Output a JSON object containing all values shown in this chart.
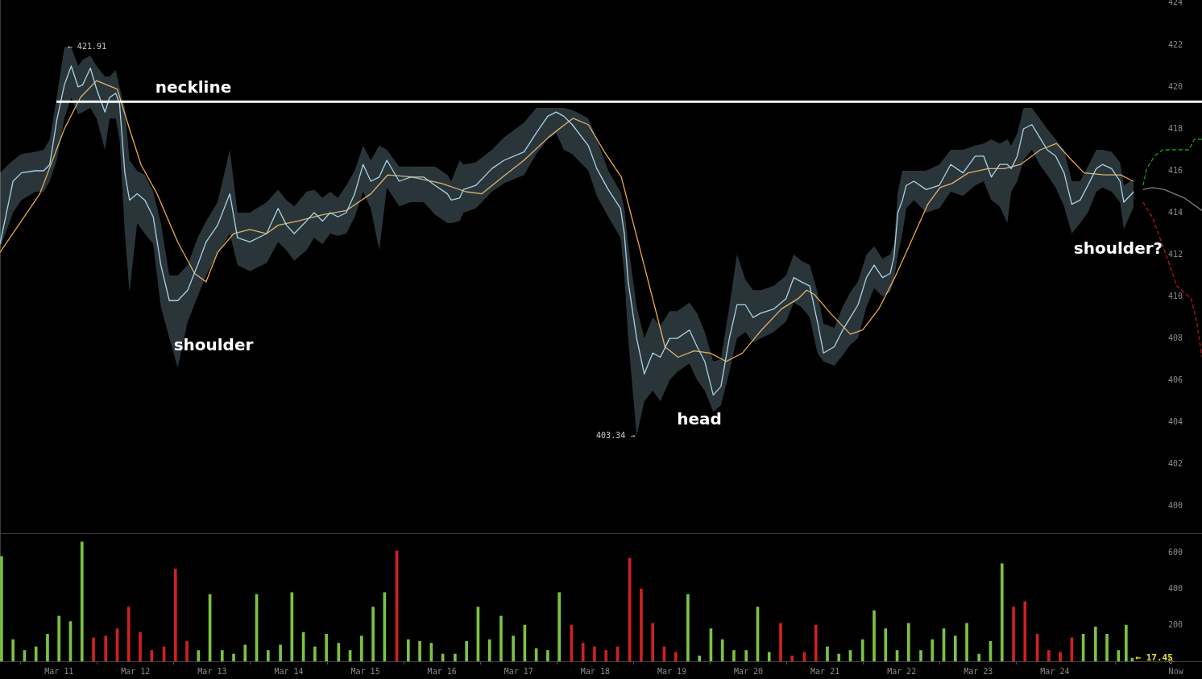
{
  "chart_data": [
    {
      "type": "line",
      "tick_labels": "y",
      "xlim": [
        "--03-10T05:31",
        "--03-25T22:05"
      ],
      "ylim": [
        398.7,
        424.15
      ],
      "yticks": [
        400,
        402,
        404,
        406,
        408,
        410,
        412,
        414,
        416,
        418,
        420,
        422,
        424
      ],
      "series": [
        {
          "color": "#a9d4e6",
          "x": [
            "--03-10T05:31",
            "--03-10T09:36",
            "--03-10T12:14",
            "--03-10T16:34",
            "--03-10T19:12",
            "--03-10T21:07",
            "--03-10T23:17",
            "--03-11T01:41",
            "--03-11T03:50",
            "--03-11T06:00",
            "--03-11T07:26",
            "--03-11T09:50",
            "--03-11T11:46",
            "--03-11T14:24",
            "--03-11T15:50",
            "--03-11T17:46",
            "--03-11T18:58",
            "--03-11T20:38",
            "--03-11T22:05",
            "--03-12T00:29",
            "--03-12T02:53",
            "--03-12T05:31",
            "--03-12T07:55",
            "--03-12T10:34",
            "--03-12T13:12",
            "--03-12T16:19",
            "--03-12T19:26",
            "--03-12T22:05",
            "--03-13T01:41",
            "--03-13T05:31",
            "--03-13T07:55",
            "--03-13T11:46",
            "--03-13T17:02",
            "--03-13T20:38",
            "--03-13T23:17",
            "--03-14T01:41",
            "--03-14T05:31",
            "--03-14T07:55",
            "--03-14T10:34",
            "--03-14T12:58",
            "--03-14T15:22",
            "--03-14T18:00",
            "--03-14T20:38",
            "--03-14T23:17",
            "--03-15T01:41",
            "--03-15T04:19",
            "--03-15T06:43",
            "--03-15T10:34",
            "--03-15T14:10",
            "--03-15T18:14",
            "--03-15T21:50",
            "--03-16T01:41",
            "--03-16T02:53",
            "--03-16T05:31",
            "--03-16T06:43",
            "--03-16T10:34",
            "--03-16T15:36",
            "--03-16T19:26",
            "--03-17T01:41",
            "--03-17T05:31",
            "--03-17T09:07",
            "--03-17T11:46",
            "--03-17T14:10",
            "--03-17T16:48",
            "--03-17T21:50",
            "--03-18T00:29",
            "--03-18T04:05",
            "--03-18T07:55",
            "--03-18T09:07",
            "--03-18T10:19",
            "--03-18T12:58",
            "--03-18T15:22",
            "--03-18T18:00",
            "--03-18T20:24",
            "--03-18T23:17",
            "--03-19T01:41",
            "--03-19T05:31",
            "--03-19T07:55",
            "--03-19T10:19",
            "--03-19T12:58",
            "--03-19T15:22",
            "--03-19T18:00",
            "--03-19T20:24",
            "--03-19T23:02",
            "--03-20T01:26",
            "--03-20T03:50",
            "--03-20T07:55",
            "--03-20T11:46",
            "--03-20T14:10",
            "--03-20T16:34",
            "--03-20T19:12",
            "--03-20T21:36",
            "--03-20T23:31",
            "--03-21T02:53",
            "--03-21T05:31",
            "--03-21T07:55",
            "--03-21T10:19",
            "--03-21T12:58",
            "--03-21T15:22",
            "--03-21T18:00",
            "--03-21T20:24",
            "--03-21T21:36",
            "--03-21T22:48",
            "--03-22T00:14",
            "--03-22T01:26",
            "--03-22T03:50",
            "--03-22T07:41",
            "--03-22T11:46",
            "--03-22T15:22",
            "--03-22T19:12",
            "--03-22T23:02",
            "--03-23T01:41",
            "--03-23T04:05",
            "--03-23T06:43",
            "--03-23T09:07",
            "--03-23T10:19",
            "--03-23T12:14",
            "--03-23T14:10",
            "--03-23T16:48",
            "--03-23T19:12",
            "--03-23T21:36",
            "--03-24T00:14",
            "--03-24T02:53",
            "--03-24T05:17",
            "--03-24T07:55",
            "--03-24T10:19",
            "--03-24T12:58",
            "--03-24T14:53",
            "--03-24T17:46",
            "--03-24T20:24",
            "--03-24T21:36",
            "--03-25T00:43"
          ],
          "values": [
            412.5,
            415.5,
            415.9,
            416.0,
            416.0,
            416.3,
            418.4,
            420.1,
            421.0,
            420.0,
            420.1,
            420.9,
            419.9,
            418.8,
            419.5,
            419.7,
            419.2,
            415.9,
            414.6,
            414.9,
            414.6,
            413.8,
            411.5,
            409.8,
            409.8,
            410.3,
            411.5,
            412.6,
            413.4,
            414.9,
            412.8,
            412.6,
            413.0,
            414.2,
            413.4,
            413.0,
            413.6,
            414.0,
            413.6,
            414.0,
            413.8,
            414.0,
            414.9,
            416.3,
            415.5,
            415.7,
            416.5,
            415.5,
            415.7,
            415.7,
            415.3,
            414.9,
            414.6,
            414.7,
            415.1,
            415.3,
            416.1,
            416.5,
            416.9,
            417.8,
            418.6,
            418.8,
            418.6,
            418.2,
            417.2,
            416.1,
            415.1,
            414.2,
            413.0,
            410.7,
            408.0,
            406.3,
            407.3,
            407.1,
            408.0,
            408.0,
            408.4,
            407.6,
            406.9,
            405.3,
            405.7,
            408.0,
            409.6,
            409.6,
            409.0,
            409.2,
            409.4,
            409.9,
            410.9,
            410.7,
            410.5,
            408.8,
            407.3,
            407.6,
            408.4,
            409.0,
            409.6,
            410.9,
            411.5,
            410.9,
            411.1,
            411.9,
            414.0,
            414.6,
            415.3,
            415.5,
            415.1,
            415.3,
            416.3,
            415.9,
            416.7,
            416.7,
            415.7,
            416.3,
            416.3,
            416.1,
            416.7,
            418.0,
            418.2,
            417.6,
            417.0,
            416.7,
            415.9,
            414.4,
            414.6,
            415.3,
            416.1,
            416.3,
            416.1,
            415.5,
            414.5,
            415.0
          ],
          "upper": [
            415.9,
            416.5,
            416.8,
            416.9,
            417.0,
            417.5,
            419.5,
            421.9,
            421.9,
            421.0,
            421.3,
            421.5,
            421.0,
            420.5,
            420.5,
            420.8,
            420.0,
            419.0,
            416.5,
            416.0,
            415.8,
            415.0,
            413.5,
            411.0,
            411.0,
            411.5,
            412.8,
            413.6,
            414.5,
            417.0,
            414.0,
            414.0,
            414.5,
            415.1,
            414.6,
            414.3,
            415.0,
            415.1,
            414.7,
            415.0,
            414.7,
            415.3,
            416.0,
            417.2,
            416.5,
            417.2,
            417.0,
            416.2,
            416.2,
            416.2,
            416.2,
            415.8,
            415.5,
            416.5,
            416.3,
            416.4,
            417.0,
            417.6,
            418.3,
            419.0,
            419.0,
            419.0,
            419.0,
            418.9,
            418.5,
            417.5,
            416.0,
            415.0,
            414.2,
            412.5,
            409.5,
            408.0,
            409.0,
            408.6,
            409.3,
            409.3,
            409.7,
            409.2,
            408.3,
            406.9,
            407.0,
            409.5,
            412.0,
            410.8,
            410.3,
            410.3,
            410.5,
            411.0,
            412.0,
            411.7,
            411.5,
            410.2,
            408.7,
            408.5,
            409.5,
            410.2,
            410.7,
            412.0,
            412.4,
            411.8,
            412.0,
            412.5,
            415.0,
            416.0,
            416.0,
            416.0,
            416.0,
            416.3,
            417.0,
            417.0,
            417.2,
            417.3,
            417.5,
            417.3,
            417.5,
            417.2,
            417.8,
            419.0,
            419.0,
            418.5,
            418.0,
            417.5,
            417.0,
            415.5,
            415.5,
            416.2,
            417.0,
            417.0,
            416.9,
            416.4,
            415.3,
            415.6
          ],
          "lower": [
            412.3,
            414.0,
            414.6,
            415.0,
            415.0,
            415.5,
            416.5,
            418.5,
            419.5,
            418.7,
            418.8,
            419.0,
            418.5,
            417.0,
            418.5,
            418.5,
            417.5,
            413.0,
            410.2,
            413.5,
            413.0,
            412.5,
            409.5,
            408.0,
            406.6,
            408.8,
            410.0,
            411.0,
            412.0,
            413.0,
            411.5,
            411.2,
            411.6,
            412.6,
            412.2,
            411.7,
            412.2,
            412.8,
            412.5,
            413.0,
            412.9,
            413.0,
            413.8,
            415.0,
            414.2,
            412.2,
            415.2,
            414.3,
            414.5,
            414.5,
            413.9,
            413.5,
            413.5,
            413.6,
            414.0,
            414.2,
            415.0,
            415.4,
            415.8,
            416.8,
            417.5,
            417.8,
            417.0,
            416.8,
            416.0,
            414.8,
            413.8,
            412.8,
            411.0,
            408.0,
            403.34,
            405.0,
            405.5,
            405.0,
            406.0,
            406.4,
            406.8,
            406.0,
            405.5,
            404.5,
            404.8,
            406.4,
            408.0,
            408.3,
            407.8,
            408.0,
            408.3,
            408.8,
            409.7,
            409.5,
            409.0,
            407.3,
            406.9,
            406.7,
            407.2,
            407.7,
            408.0,
            409.5,
            410.4,
            410.0,
            410.2,
            410.8,
            412.0,
            413.0,
            414.2,
            414.6,
            414.0,
            414.2,
            415.0,
            414.8,
            415.3,
            415.5,
            414.6,
            414.3,
            413.5,
            415.0,
            415.5,
            416.5,
            417.0,
            416.3,
            415.8,
            415.2,
            414.3,
            413.0,
            413.5,
            414.0,
            415.0,
            415.2,
            415.0,
            414.5,
            413.2,
            414.3
          ]
        },
        {
          "color": "#f0a848",
          "x": [
            "--03-10T05:31",
            "--03-10T18:00",
            "--03-11T01:41",
            "--03-11T06:43",
            "--03-11T11:46",
            "--03-11T18:14",
            "--03-11T22:05",
            "--03-12T01:41",
            "--03-12T06:43",
            "--03-12T13:12",
            "--03-12T18:29",
            "--03-12T22:05",
            "--03-13T01:41",
            "--03-13T06:43",
            "--03-13T11:46",
            "--03-13T17:02",
            "--03-13T20:38",
            "--03-14T02:53",
            "--03-14T10:34",
            "--03-14T18:00",
            "--03-15T01:41",
            "--03-15T06:58",
            "--03-15T14:38",
            "--03-15T23:46",
            "--03-16T07:26",
            "--03-16T12:29",
            "--03-16T18:58",
            "--03-17T01:41",
            "--03-17T09:22",
            "--03-17T14:24",
            "--03-17T17:02",
            "--03-17T21:50",
            "--03-18T02:53",
            "--03-18T08:10",
            "--03-18T13:26",
            "--03-18T18:29",
            "--03-18T21:50",
            "--03-19T01:55",
            "--03-19T06:58",
            "--03-19T12:00",
            "--03-19T17:02",
            "--03-19T22:05",
            "--03-20T04:05",
            "--03-20T10:19",
            "--03-20T15:36",
            "--03-20T18:14",
            "--03-20T20:38",
            "--03-21T01:41",
            "--03-21T07:55",
            "--03-21T11:46",
            "--03-21T16:48",
            "--03-21T21:50",
            "--03-22T02:53",
            "--03-22T08:10",
            "--03-22T12:00",
            "--03-22T15:50",
            "--03-22T20:53",
            "--03-23T03:07",
            "--03-23T08:10",
            "--03-23T13:12",
            "--03-23T19:26",
            "--03-24T00:29",
            "--03-24T05:17",
            "--03-24T09:07",
            "--03-24T15:36",
            "--03-24T20:38",
            "--03-25T00:29"
          ],
          "values": [
            412.1,
            414.9,
            418.0,
            419.5,
            420.3,
            419.9,
            418.0,
            416.3,
            414.9,
            412.6,
            411.1,
            410.7,
            412.1,
            413.0,
            413.2,
            413.0,
            413.4,
            413.6,
            413.9,
            414.1,
            414.9,
            415.8,
            415.7,
            415.4,
            415.0,
            414.9,
            415.7,
            416.5,
            417.6,
            418.2,
            418.5,
            418.2,
            416.9,
            415.7,
            412.6,
            409.6,
            407.6,
            407.1,
            407.4,
            407.3,
            406.9,
            407.3,
            408.4,
            409.4,
            409.9,
            410.3,
            410.1,
            409.2,
            408.2,
            408.4,
            409.4,
            410.9,
            412.6,
            414.4,
            415.2,
            415.4,
            415.9,
            416.1,
            416.1,
            416.3,
            417.0,
            417.3,
            416.5,
            415.9,
            415.8,
            415.8,
            415.5
          ]
        },
        {
          "color": "#1f9a1f",
          "line_style": "dashed",
          "x": [
            "--03-25T03:36",
            "--03-25T04:48",
            "--03-25T07:12",
            "--03-25T09:50",
            "--03-25T18:00",
            "--03-25T19:41",
            "--03-25T22:05"
          ],
          "values": [
            415.3,
            416.1,
            416.7,
            417.0,
            417.0,
            417.5,
            417.5
          ]
        },
        {
          "color": "#808080",
          "x": [
            "--03-25T03:36",
            "--03-25T06:29",
            "--03-25T10:19",
            "--03-25T16:34",
            "--03-25T22:05"
          ],
          "values": [
            415.1,
            415.2,
            415.1,
            414.7,
            414.1
          ]
        },
        {
          "color": "#b01818",
          "line_style": "dashed",
          "x": [
            "--03-25T03:36",
            "--03-25T06:29",
            "--03-25T08:24",
            "--03-25T11:02",
            "--03-25T14:10",
            "--03-25T18:43",
            "--03-25T20:24",
            "--03-25T22:05"
          ],
          "values": [
            414.5,
            413.8,
            413.0,
            411.9,
            410.5,
            409.9,
            408.8,
            407.1
          ]
        }
      ],
      "ref_lines": [
        {
          "axis": "y",
          "value": 419.3,
          "label": "neckline",
          "color": "#ffffff"
        }
      ],
      "annotations": [
        "shoulder",
        "head",
        "shoulder?",
        {
          "text": "← 421.91",
          "x": "--03-11T02:10",
          "y": 421.91
        },
        {
          "text": "403.34 →",
          "x": "--03-18T12:58",
          "y": 403.34
        }
      ]
    },
    {
      "type": "bar",
      "xlim": [
        "--03-10T05:31",
        "--03-25T22:05"
      ],
      "ylim": [
        0,
        704
      ],
      "yticks": [
        0,
        200,
        400,
        600
      ],
      "xticks": [
        {
          "value": "--03-11",
          "label": "Mar 11"
        },
        {
          "value": "--03-12",
          "label": "Mar 12"
        },
        {
          "value": "--03-13",
          "label": "Mar 13"
        },
        {
          "value": "--03-14",
          "label": "Mar 14"
        },
        {
          "value": "--03-15",
          "label": "Mar 15"
        },
        {
          "value": "--03-16",
          "label": "Mar 16"
        },
        {
          "value": "--03-17",
          "label": "Mar 17"
        },
        {
          "value": "--03-18",
          "label": "Mar 18"
        },
        {
          "value": "--03-19",
          "label": "Mar 19"
        },
        {
          "value": "--03-20",
          "label": "Mar 20"
        },
        {
          "value": "--03-21",
          "label": "Mar 21"
        },
        {
          "value": "--03-22",
          "label": "Mar 22"
        },
        {
          "value": "--03-23",
          "label": "Mar 23"
        },
        {
          "value": "--03-24",
          "label": "Mar 24"
        },
        {
          "value": "--03-25T13:55",
          "label": "Now"
        }
      ],
      "x": [
        "--03-10T06:00",
        "--03-10T09:36",
        "--03-10T13:12",
        "--03-10T16:48",
        "--03-10T20:24",
        "--03-11T00:00",
        "--03-11T03:36",
        "--03-11T07:12",
        "--03-11T10:48",
        "--03-11T14:38",
        "--03-11T18:14",
        "--03-11T21:50",
        "--03-12T01:26",
        "--03-12T05:02",
        "--03-12T08:53",
        "--03-12T12:29",
        "--03-12T16:05",
        "--03-12T19:41",
        "--03-12T23:17",
        "--03-13T03:07",
        "--03-13T06:43",
        "--03-13T10:19",
        "--03-13T13:55",
        "--03-13T17:31",
        "--03-13T21:22",
        "--03-14T00:58",
        "--03-14T04:34",
        "--03-14T08:10",
        "--03-14T11:46",
        "--03-14T15:36",
        "--03-14T19:12",
        "--03-14T22:48",
        "--03-15T02:24",
        "--03-15T06:00",
        "--03-15T09:50",
        "--03-15T13:26",
        "--03-15T17:02",
        "--03-15T20:38",
        "--03-16T00:14",
        "--03-16T04:05",
        "--03-16T07:41",
        "--03-16T11:17",
        "--03-16T14:53",
        "--03-16T18:29",
        "--03-16T22:19",
        "--03-17T01:55",
        "--03-17T05:31",
        "--03-17T09:07",
        "--03-17T12:43",
        "--03-17T16:34",
        "--03-17T20:10",
        "--03-17T23:46",
        "--03-18T03:22",
        "--03-18T06:58",
        "--03-18T10:48",
        "--03-18T14:24",
        "--03-18T18:00",
        "--03-18T21:36",
        "--03-19T01:12",
        "--03-19T05:02",
        "--03-19T08:38",
        "--03-19T12:14",
        "--03-19T15:50",
        "--03-19T19:26",
        "--03-19T23:17",
        "--03-20T02:53",
        "--03-20T06:29",
        "--03-20T10:05",
        "--03-20T13:41",
        "--03-20T17:31",
        "--03-20T21:07",
        "--03-21T00:43",
        "--03-21T04:19",
        "--03-21T07:55",
        "--03-21T11:46",
        "--03-21T15:22",
        "--03-21T18:58",
        "--03-21T22:34",
        "--03-22T02:10",
        "--03-22T06:00",
        "--03-22T09:36",
        "--03-22T13:12",
        "--03-22T16:48",
        "--03-22T20:24",
        "--03-23T00:14",
        "--03-23T03:50",
        "--03-23T07:26",
        "--03-23T11:02",
        "--03-23T14:38",
        "--03-23T18:29",
        "--03-23T22:05",
        "--03-24T01:41",
        "--03-24T05:17",
        "--03-24T08:53",
        "--03-24T12:43",
        "--03-24T16:19",
        "--03-24T19:55",
        "--03-24T22:19",
        "--03-25T00:14"
      ],
      "values": [
        580,
        120,
        60,
        80,
        150,
        250,
        220,
        660,
        130,
        140,
        180,
        300,
        160,
        60,
        80,
        510,
        110,
        60,
        370,
        60,
        40,
        90,
        370,
        60,
        90,
        380,
        160,
        80,
        150,
        100,
        60,
        140,
        300,
        380,
        610,
        120,
        110,
        100,
        40,
        40,
        110,
        300,
        120,
        250,
        140,
        200,
        70,
        60,
        380,
        200,
        100,
        80,
        60,
        80,
        570,
        400,
        210,
        80,
        50,
        370,
        30,
        180,
        120,
        60,
        60,
        300,
        50,
        210,
        30,
        50,
        200,
        80,
        40,
        60,
        120,
        280,
        180,
        60,
        210,
        60,
        120,
        180,
        140,
        210,
        40,
        110,
        540,
        300,
        330,
        150,
        60,
        50,
        130,
        150,
        190,
        150,
        60,
        200,
        17.45
      ],
      "colors": [
        "#7cc243",
        "#7cc243",
        "#7cc243",
        "#7cc243",
        "#7cc243",
        "#7cc243",
        "#7cc243",
        "#7cc243",
        "#d02020",
        "#d02020",
        "#d02020",
        "#d02020",
        "#d02020",
        "#d02020",
        "#d02020",
        "#d02020",
        "#d02020",
        "#7cc243",
        "#7cc243",
        "#7cc243",
        "#7cc243",
        "#7cc243",
        "#7cc243",
        "#7cc243",
        "#7cc243",
        "#7cc243",
        "#7cc243",
        "#7cc243",
        "#7cc243",
        "#7cc243",
        "#7cc243",
        "#7cc243",
        "#7cc243",
        "#7cc243",
        "#d02020",
        "#7cc243",
        "#7cc243",
        "#7cc243",
        "#7cc243",
        "#7cc243",
        "#7cc243",
        "#7cc243",
        "#7cc243",
        "#7cc243",
        "#7cc243",
        "#7cc243",
        "#7cc243",
        "#7cc243",
        "#7cc243",
        "#d02020",
        "#d02020",
        "#d02020",
        "#d02020",
        "#d02020",
        "#d02020",
        "#d02020",
        "#d02020",
        "#d02020",
        "#d02020",
        "#7cc243",
        "#7cc243",
        "#7cc243",
        "#7cc243",
        "#7cc243",
        "#7cc243",
        "#7cc243",
        "#7cc243",
        "#d02020",
        "#d02020",
        "#d02020",
        "#d02020",
        "#7cc243",
        "#7cc243",
        "#7cc243",
        "#7cc243",
        "#7cc243",
        "#7cc243",
        "#7cc243",
        "#7cc243",
        "#7cc243",
        "#7cc243",
        "#7cc243",
        "#7cc243",
        "#7cc243",
        "#7cc243",
        "#7cc243",
        "#7cc243",
        "#d02020",
        "#d02020",
        "#d02020",
        "#d02020",
        "#d02020",
        "#d02020",
        "#7cc243",
        "#7cc243",
        "#7cc243",
        "#7cc243",
        "#7cc243",
        "#7cc243"
      ],
      "annotations": [
        {
          "text": "← 17.45",
          "x": "--03-25T00:14",
          "y": 17.45
        }
      ]
    }
  ]
}
